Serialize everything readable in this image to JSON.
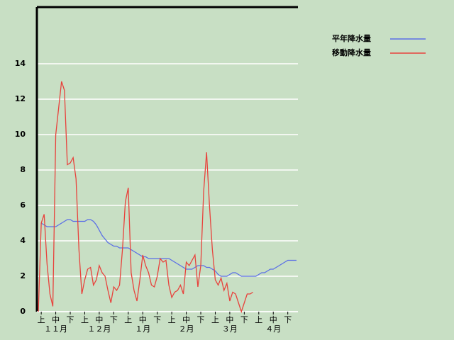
{
  "chart_data": {
    "type": "line",
    "categories": [
      null,
      "上",
      null,
      null,
      null,
      null,
      "中",
      null,
      null,
      null,
      null,
      "下",
      null,
      null,
      null,
      null,
      "上",
      null,
      null,
      null,
      null,
      "中",
      null,
      null,
      null,
      null,
      "下",
      null,
      null,
      null,
      null,
      "上",
      null,
      null,
      null,
      null,
      "中",
      null,
      null,
      null,
      null,
      "下",
      null,
      null,
      null,
      null,
      "上",
      null,
      null,
      null,
      null,
      "中",
      null,
      null,
      null,
      null,
      "下",
      null,
      null,
      null,
      null,
      "上",
      null,
      null,
      null,
      null,
      "中",
      null,
      null,
      null,
      null,
      "下",
      null,
      null,
      null,
      null,
      "上",
      null,
      null,
      null,
      null,
      "中",
      null,
      null,
      null,
      null,
      "下",
      null,
      null,
      null
    ],
    "x_groups": [
      "１１月",
      "１２月",
      "１月",
      "２月",
      "３月",
      "４月"
    ],
    "series": [
      {
        "name": "平年降水量",
        "color": "#5a6ee6",
        "values": [
          null,
          5.0,
          4.9,
          4.8,
          4.8,
          4.8,
          4.8,
          4.9,
          5.0,
          5.1,
          5.2,
          5.2,
          5.1,
          5.1,
          5.1,
          5.1,
          5.1,
          5.2,
          5.2,
          5.1,
          4.9,
          4.6,
          4.3,
          4.1,
          3.9,
          3.8,
          3.7,
          3.7,
          3.6,
          3.6,
          3.6,
          3.6,
          3.5,
          3.4,
          3.3,
          3.2,
          3.1,
          3.1,
          3.0,
          3.0,
          3.0,
          3.0,
          3.0,
          3.0,
          3.0,
          3.0,
          2.9,
          2.8,
          2.7,
          2.6,
          2.5,
          2.4,
          2.4,
          2.4,
          2.5,
          2.6,
          2.6,
          2.6,
          2.5,
          2.5,
          2.4,
          2.3,
          2.1,
          2.0,
          2.0,
          2.0,
          2.1,
          2.2,
          2.2,
          2.1,
          2.0,
          2.0,
          2.0,
          2.0,
          2.0,
          2.0,
          2.1,
          2.2,
          2.2,
          2.3,
          2.4,
          2.4,
          2.5,
          2.6,
          2.7,
          2.8,
          2.9,
          2.9,
          2.9,
          2.9
        ]
      },
      {
        "name": "移動降水量",
        "color": "#e8423c",
        "values": [
          0,
          5.0,
          5.5,
          2.7,
          1.0,
          0.3,
          10.0,
          11.5,
          13.0,
          12.5,
          8.3,
          8.4,
          8.7,
          7.5,
          3.5,
          1.0,
          1.8,
          2.4,
          2.5,
          1.5,
          1.8,
          2.6,
          2.2,
          2.0,
          1.2,
          0.5,
          1.4,
          1.2,
          1.5,
          3.5,
          6.2,
          7.0,
          2.2,
          1.2,
          0.6,
          1.8,
          3.2,
          2.6,
          2.2,
          1.5,
          1.4,
          2.0,
          3.0,
          2.8,
          2.9,
          1.5,
          0.8,
          1.1,
          1.2,
          1.5,
          1.0,
          2.8,
          2.6,
          2.9,
          3.2,
          1.4,
          2.6,
          6.8,
          9.0,
          6.0,
          3.5,
          1.8,
          1.5,
          1.9,
          1.2,
          1.6,
          0.6,
          1.1,
          1.0,
          0.5,
          0.0,
          0.5,
          1.0,
          1.0,
          1.1,
          null,
          null,
          null,
          null,
          null,
          null,
          null,
          null,
          null,
          null,
          null,
          null,
          null,
          null,
          null
        ]
      }
    ],
    "ylim": [
      0,
      17.2
    ],
    "yticks": [
      0,
      2,
      4,
      6,
      8,
      10,
      12,
      14
    ],
    "grid": true,
    "legend": "right"
  }
}
